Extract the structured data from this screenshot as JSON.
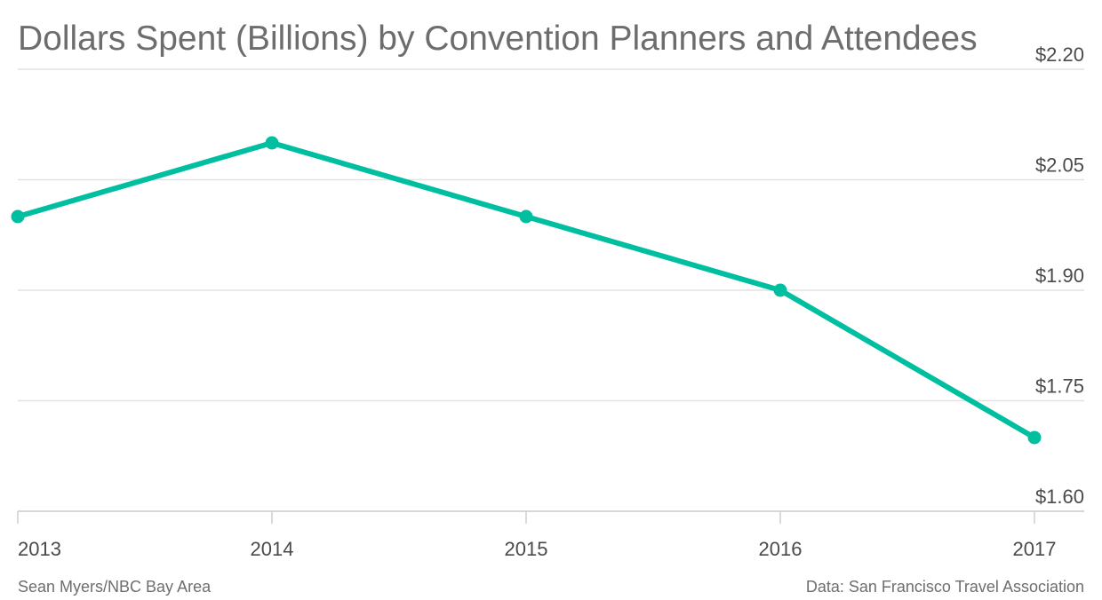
{
  "chart_data": {
    "type": "line",
    "title": "Dollars Spent (Billions) by Convention Planners and Attendees",
    "x": [
      "2013",
      "2014",
      "2015",
      "2016",
      "2017"
    ],
    "series": [
      {
        "values": [
          2.0,
          2.1,
          2.0,
          1.9,
          1.7
        ],
        "color": "#00bfa0"
      }
    ],
    "yticks": [
      1.6,
      1.75,
      1.9,
      2.05,
      2.2
    ],
    "ytick_labels": [
      "$1.60",
      "$1.75",
      "$1.90",
      "$2.05",
      "$2.20"
    ],
    "ylim": [
      1.6,
      2.2
    ],
    "y_axis_position": "right",
    "grid": true
  },
  "credits": {
    "author": "Sean Myers/NBC Bay Area",
    "source": "Data: San Francisco Travel Association"
  }
}
